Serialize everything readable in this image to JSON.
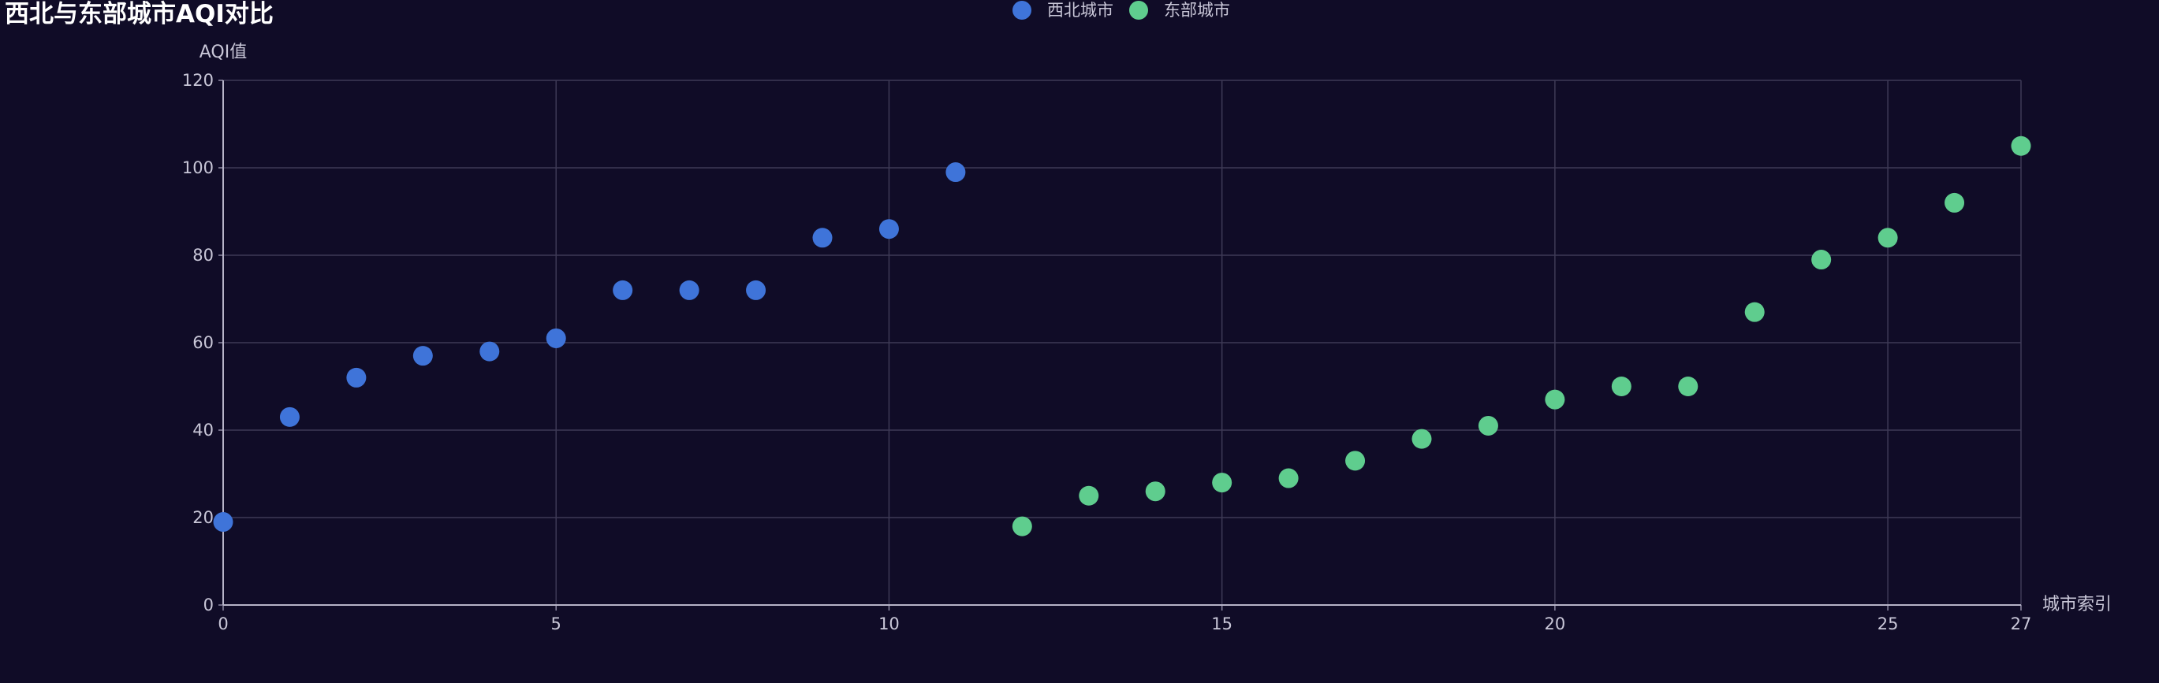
{
  "chart_data": {
    "type": "scatter",
    "title": "西北与东部城市AQI对比",
    "xlabel": "城市索引",
    "ylabel": "AQI值",
    "xlim": [
      0,
      27
    ],
    "ylim": [
      0,
      120
    ],
    "x_ticks": [
      0,
      5,
      10,
      15,
      20,
      25,
      27
    ],
    "y_ticks": [
      0,
      20,
      40,
      60,
      80,
      100,
      120
    ],
    "grid": true,
    "legend_position": "top-center",
    "series": [
      {
        "name": "西北城市",
        "color": "#3f74d9",
        "points": [
          [
            0,
            19
          ],
          [
            1,
            43
          ],
          [
            2,
            52
          ],
          [
            3,
            57
          ],
          [
            4,
            58
          ],
          [
            5,
            61
          ],
          [
            6,
            72
          ],
          [
            7,
            72
          ],
          [
            8,
            72
          ],
          [
            9,
            84
          ],
          [
            10,
            86
          ],
          [
            11,
            99
          ]
        ]
      },
      {
        "name": "东部城市",
        "color": "#5fcd8e",
        "points": [
          [
            12,
            18
          ],
          [
            13,
            25
          ],
          [
            14,
            26
          ],
          [
            15,
            28
          ],
          [
            16,
            29
          ],
          [
            17,
            33
          ],
          [
            18,
            38
          ],
          [
            19,
            41
          ],
          [
            20,
            47
          ],
          [
            21,
            50
          ],
          [
            22,
            50
          ],
          [
            23,
            67
          ],
          [
            24,
            79
          ],
          [
            25,
            84
          ],
          [
            26,
            92
          ],
          [
            27,
            105
          ]
        ]
      }
    ]
  }
}
